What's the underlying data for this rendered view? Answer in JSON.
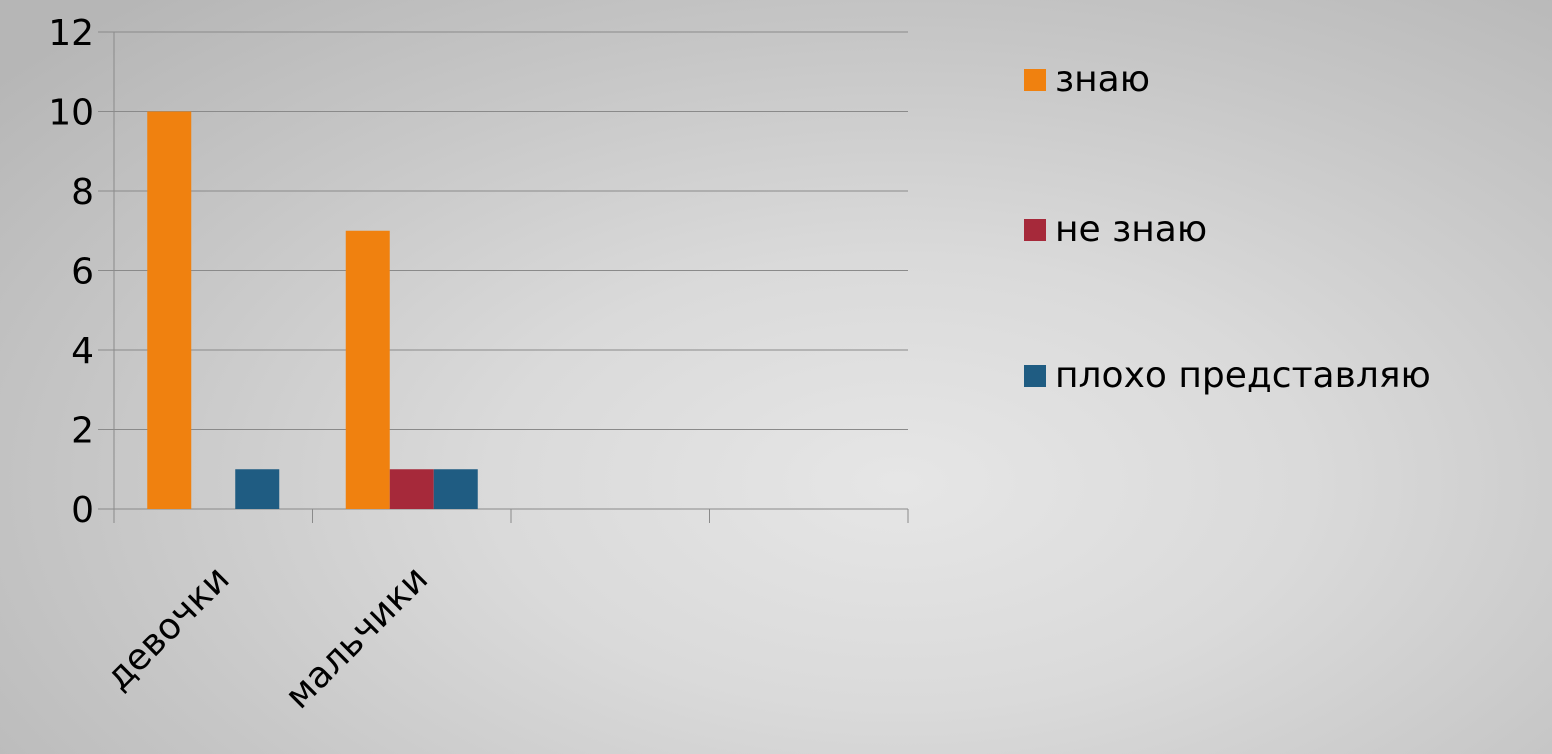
{
  "chart_data": {
    "type": "bar",
    "categories": [
      "девочки",
      "мальчики",
      "",
      ""
    ],
    "series": [
      {
        "name": "знаю",
        "color": "#F0810F",
        "values": [
          10,
          7,
          null,
          null
        ]
      },
      {
        "name": "не знаю",
        "color": "#A6293A",
        "values": [
          0,
          1,
          null,
          null
        ]
      },
      {
        "name": "плохо представляю",
        "color": "#1F5C82",
        "values": [
          1,
          1,
          null,
          null
        ]
      }
    ],
    "ylim": [
      0,
      12
    ],
    "yticks": [
      0,
      2,
      4,
      6,
      8,
      10,
      12
    ],
    "grid": true,
    "legend_position": "right",
    "title": "",
    "xlabel": "",
    "ylabel": ""
  }
}
